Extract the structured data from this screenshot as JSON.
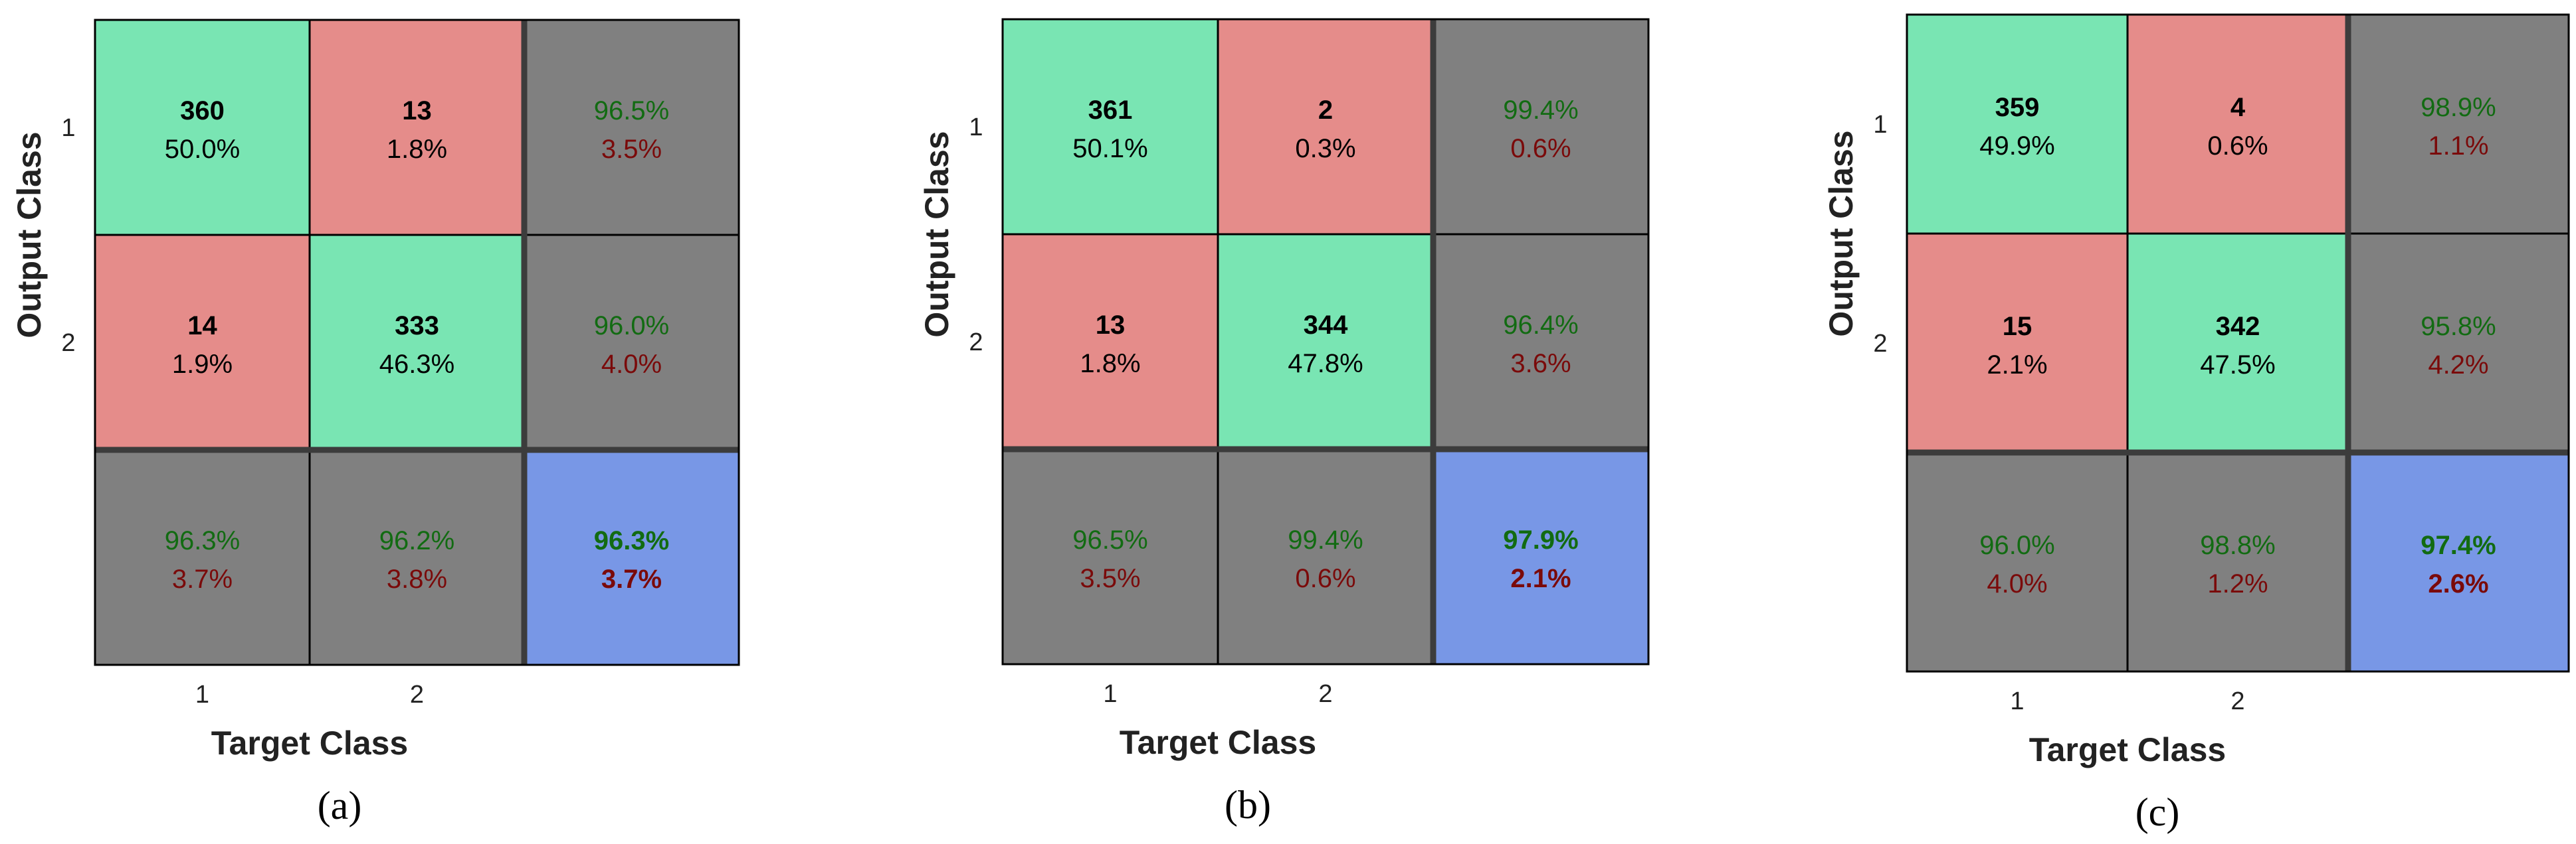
{
  "colors": {
    "correct": "#79e5b3",
    "incorrect": "#e58c8a",
    "summary": "#808080",
    "total": "#7897e6",
    "grid": "#000000",
    "thick_line": "#3c3c3c",
    "good_text": "#126b12",
    "bad_text": "#7a0a0a"
  },
  "chart_data": [
    {
      "type": "table",
      "caption": "(a)",
      "xlabel": "Target Class",
      "ylabel": "Output Class",
      "class_labels": [
        "1",
        "2"
      ],
      "matrix": [
        [
          {
            "count": "360",
            "pct": "50.0%"
          },
          {
            "count": "13",
            "pct": "1.8%"
          }
        ],
        [
          {
            "count": "14",
            "pct": "1.9%"
          },
          {
            "count": "333",
            "pct": "46.3%"
          }
        ]
      ],
      "row_summary": [
        {
          "good": "96.5%",
          "bad": "3.5%"
        },
        {
          "good": "96.0%",
          "bad": "4.0%"
        }
      ],
      "col_summary": [
        {
          "good": "96.3%",
          "bad": "3.7%"
        },
        {
          "good": "96.2%",
          "bad": "3.8%"
        }
      ],
      "total": {
        "good": "96.3%",
        "bad": "3.7%"
      }
    },
    {
      "type": "table",
      "caption": "(b)",
      "xlabel": "Target Class",
      "ylabel": "Output Class",
      "class_labels": [
        "1",
        "2"
      ],
      "matrix": [
        [
          {
            "count": "361",
            "pct": "50.1%"
          },
          {
            "count": "2",
            "pct": "0.3%"
          }
        ],
        [
          {
            "count": "13",
            "pct": "1.8%"
          },
          {
            "count": "344",
            "pct": "47.8%"
          }
        ]
      ],
      "row_summary": [
        {
          "good": "99.4%",
          "bad": "0.6%"
        },
        {
          "good": "96.4%",
          "bad": "3.6%"
        }
      ],
      "col_summary": [
        {
          "good": "96.5%",
          "bad": "3.5%"
        },
        {
          "good": "99.4%",
          "bad": "0.6%"
        }
      ],
      "total": {
        "good": "97.9%",
        "bad": "2.1%"
      }
    },
    {
      "type": "table",
      "caption": "(c)",
      "xlabel": "Target Class",
      "ylabel": "Output Class",
      "class_labels": [
        "1",
        "2"
      ],
      "matrix": [
        [
          {
            "count": "359",
            "pct": "49.9%"
          },
          {
            "count": "4",
            "pct": "0.6%"
          }
        ],
        [
          {
            "count": "15",
            "pct": "2.1%"
          },
          {
            "count": "342",
            "pct": "47.5%"
          }
        ]
      ],
      "row_summary": [
        {
          "good": "98.9%",
          "bad": "1.1%"
        },
        {
          "good": "95.8%",
          "bad": "4.2%"
        }
      ],
      "col_summary": [
        {
          "good": "96.0%",
          "bad": "4.0%"
        },
        {
          "good": "98.8%",
          "bad": "1.2%"
        }
      ],
      "total": {
        "good": "97.4%",
        "bad": "2.6%"
      }
    }
  ]
}
